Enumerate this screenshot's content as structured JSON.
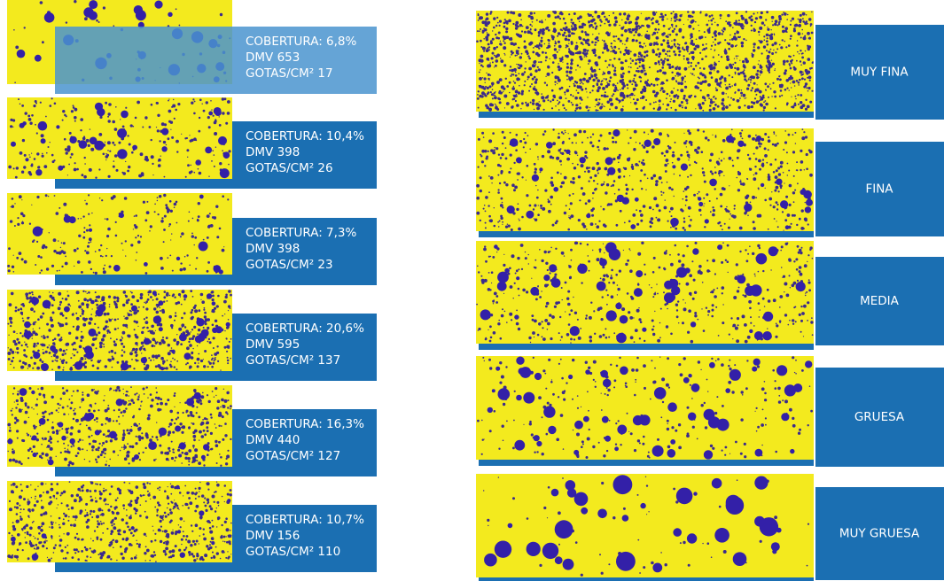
{
  "left_cards": [
    {
      "lines": [
        "COBERTURA: 6,8%",
        "DMV 653",
        "GOTAS/CM² 17"
      ]
    },
    {
      "lines": [
        "COBERTURA: 10,4%",
        "DMV 398",
        "GOTAS/CM² 26"
      ]
    },
    {
      "lines": [
        "COBERTURA: 7,3%",
        "DMV 398",
        "GOTAS/CM² 23"
      ]
    },
    {
      "lines": [
        "COBERTURA: 20,6%",
        "DMV 595",
        "GOTAS/CM² 137"
      ]
    },
    {
      "lines": [
        "COBERTURA: 16,3%",
        "DMV 440",
        "GOTAS/CM² 127"
      ]
    },
    {
      "lines": [
        "COBERTURA: 10,7%",
        "DMV 156",
        "GOTAS/CM² 110"
      ]
    }
  ],
  "right_cards": [
    {
      "label": "MUY FINA"
    },
    {
      "label": "FINA"
    },
    {
      "label": "MEDIA"
    },
    {
      "label": "GRUESA"
    },
    {
      "label": "MUY GRUESA"
    }
  ]
}
